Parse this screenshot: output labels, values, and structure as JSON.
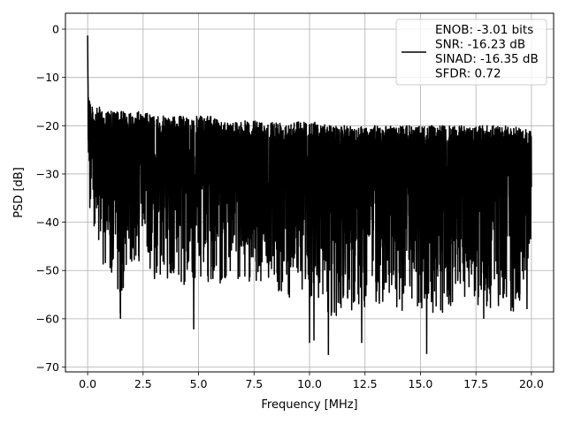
{
  "chart_data": {
    "type": "line",
    "xlabel": "Frequency [MHz]",
    "ylabel": "PSD [dB]",
    "xlim": [
      -1.0,
      21.0
    ],
    "ylim": [
      -71.0,
      3.3
    ],
    "xticks": [
      0.0,
      2.5,
      5.0,
      7.5,
      10.0,
      12.5,
      15.0,
      17.5,
      20.0
    ],
    "xtick_labels": [
      "0.0",
      "2.5",
      "5.0",
      "7.5",
      "10.0",
      "12.5",
      "15.0",
      "17.5",
      "20.0"
    ],
    "yticks": [
      0,
      -10,
      -20,
      -30,
      -40,
      -50,
      -60,
      -70
    ],
    "ytick_labels": [
      "0",
      "−10",
      "−20",
      "−30",
      "−40",
      "−50",
      "−60",
      "−70"
    ],
    "grid": true,
    "legend_position": "top-right",
    "series": [
      {
        "name": "ENOB: -3.01 bits\nSNR: -16.23 dB\nSINAD: -16.35 dB\nSFDR: 0.72",
        "legend_lines": [
          "ENOB: -3.01 bits",
          "SNR: -16.23 dB",
          "SINAD: -16.35 dB",
          "SFDR: 0.72"
        ],
        "color": "#000000",
        "x": [
          0.0,
          0.01,
          0.02,
          0.04,
          0.06,
          0.1,
          0.15,
          0.2,
          0.3,
          0.5,
          0.75,
          1.0,
          1.25,
          1.5,
          2.0,
          2.5,
          3.0,
          3.5,
          4.0,
          4.5,
          5.0,
          5.5,
          6.0,
          7.0,
          8.0,
          9.0,
          10.0,
          11.0,
          12.0,
          13.0,
          14.0,
          15.0,
          16.0,
          17.0,
          18.0,
          19.0,
          20.0
        ],
        "y_upper": [
          0,
          -8,
          -10,
          -11,
          -12,
          -14,
          -15,
          -16,
          -17,
          -16,
          -17,
          -17,
          -17,
          -17,
          -17,
          -17,
          -18,
          -18,
          -18,
          -18,
          -18,
          -18,
          -19,
          -19,
          -19,
          -19,
          -19,
          -20,
          -20,
          -20,
          -20,
          -20,
          -20,
          -20,
          -20,
          -20,
          -21
        ],
        "y_lower": [
          -33,
          -33,
          -33,
          -35,
          -36,
          -38,
          -40,
          -42,
          -44,
          -46,
          -50,
          -52,
          -52,
          -60,
          -48,
          -50,
          -52,
          -52,
          -52,
          -55,
          -52,
          -53,
          -53,
          -53,
          -52,
          -56,
          -56,
          -60,
          -58,
          -58,
          -58,
          -60,
          -59,
          -58,
          -59,
          -60,
          -52
        ],
        "notable_minima": [
          {
            "x": 1.48,
            "y": -60
          },
          {
            "x": 4.78,
            "y": -62.2
          },
          {
            "x": 10.0,
            "y": -65
          },
          {
            "x": 10.2,
            "y": -64.5
          },
          {
            "x": 10.85,
            "y": -67.5
          },
          {
            "x": 12.35,
            "y": -65
          },
          {
            "x": 15.28,
            "y": -67.3
          },
          {
            "x": 17.85,
            "y": -60
          },
          {
            "x": 19.8,
            "y": -58
          }
        ]
      }
    ]
  }
}
